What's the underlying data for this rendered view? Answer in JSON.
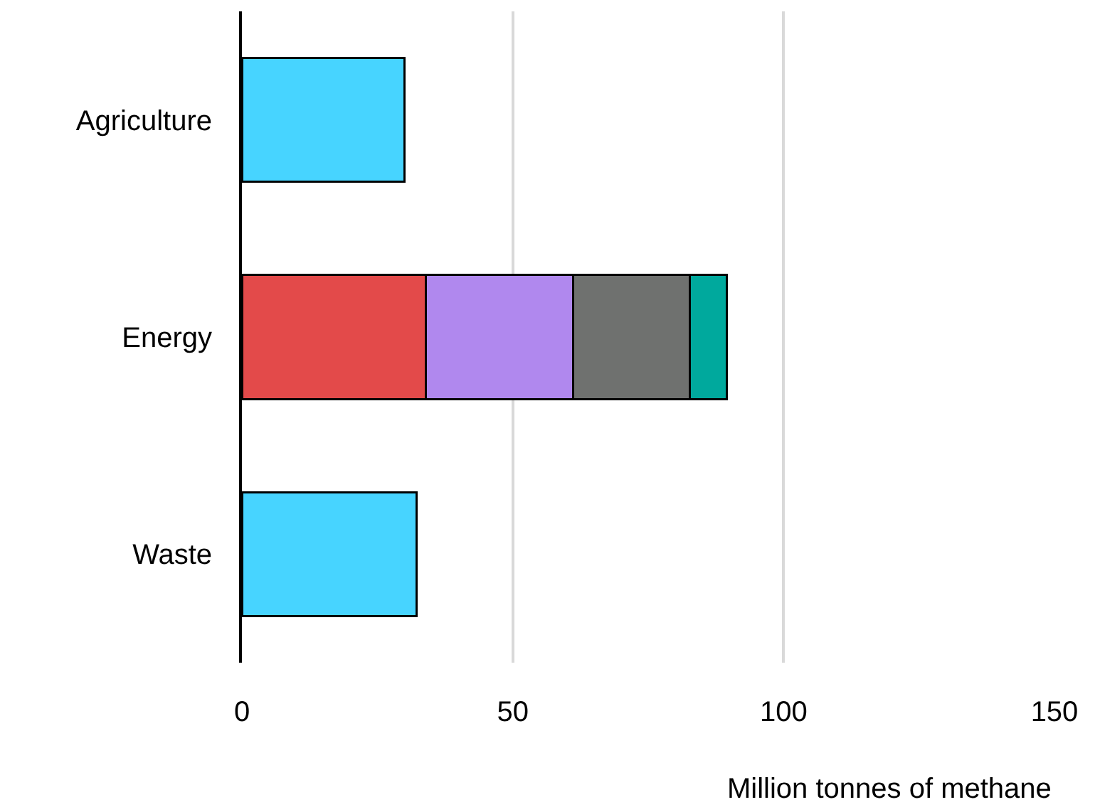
{
  "chart_data": {
    "type": "bar",
    "orientation": "horizontal",
    "stacked": true,
    "categories": [
      "Agriculture",
      "Energy",
      "Waste"
    ],
    "series": [
      {
        "colors": [
          "#47d4ff",
          "#e34a4a",
          "#47d4ff"
        ],
        "values": [
          30,
          33.9,
          32.3
        ]
      },
      {
        "color": "#b088ee",
        "values": [
          null,
          27.3,
          null
        ]
      },
      {
        "color": "#6f716f",
        "values": [
          null,
          21.5,
          null
        ]
      },
      {
        "color": "#00a99d",
        "values": [
          null,
          6.8,
          null
        ]
      }
    ],
    "xlabel": "Million tonnes of methane",
    "xlim": [
      0,
      150
    ],
    "xticks": [
      0,
      50,
      100,
      150
    ],
    "grid": "x"
  }
}
